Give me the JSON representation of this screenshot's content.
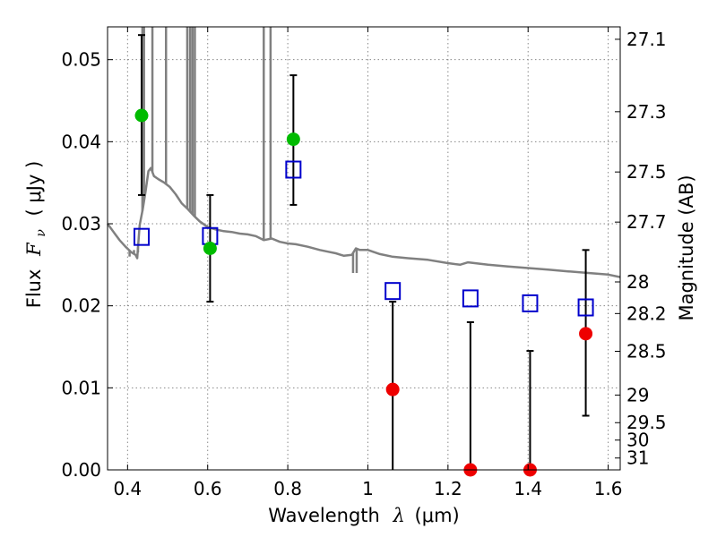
{
  "chart_data": {
    "type": "scatter",
    "title": "",
    "xlabel": "Wavelength",
    "xlabel_symbol": "λ",
    "xlabel_unit": "(μm)",
    "ylabel": "Flux",
    "ylabel_symbol": "F",
    "ylabel_subscript": "ν",
    "ylabel_unit": "( μJy )",
    "y2label": "Magnitude (AB)",
    "xlim": [
      0.35,
      1.63
    ],
    "ylim": [
      0.0,
      0.054
    ],
    "grid": true,
    "grid_style": "dotted",
    "legend": "none",
    "x_ticks": [
      {
        "value": 0.4,
        "label": "0.4"
      },
      {
        "value": 0.6,
        "label": "0.6"
      },
      {
        "value": 0.8,
        "label": "0.8"
      },
      {
        "value": 1.0,
        "label": "1"
      },
      {
        "value": 1.2,
        "label": "1.2"
      },
      {
        "value": 1.4,
        "label": "1.4"
      },
      {
        "value": 1.6,
        "label": "1.6"
      }
    ],
    "y_ticks": [
      {
        "value": 0.0,
        "label": "0.00"
      },
      {
        "value": 0.01,
        "label": "0.01"
      },
      {
        "value": 0.02,
        "label": "0.02"
      },
      {
        "value": 0.03,
        "label": "0.03"
      },
      {
        "value": 0.04,
        "label": "0.04"
      },
      {
        "value": 0.05,
        "label": "0.05"
      }
    ],
    "y2_ticks": [
      {
        "mag": 27.1,
        "label": "27.1"
      },
      {
        "mag": 27.3,
        "label": "27.3"
      },
      {
        "mag": 27.5,
        "label": "27.5"
      },
      {
        "mag": 27.7,
        "label": "27.7"
      },
      {
        "mag": 28.0,
        "label": "28"
      },
      {
        "mag": 28.2,
        "label": "28.2"
      },
      {
        "mag": 28.5,
        "label": "28.5"
      },
      {
        "mag": 29.0,
        "label": "29"
      },
      {
        "mag": 29.5,
        "label": "29.5"
      },
      {
        "mag": 30.0,
        "label": "30"
      },
      {
        "mag": 31.0,
        "label": "31"
      }
    ],
    "colors": {
      "spectrum": "#808080",
      "detected": "#00bb00",
      "upper_limit": "#ee0000",
      "model": "#0000cc",
      "errorbar": "#000000",
      "grid": "#888888"
    },
    "observed_detected": [
      {
        "x": 0.435,
        "y": 0.0432,
        "yerr_low": 0.0097,
        "yerr_high": 0.0098
      },
      {
        "x": 0.606,
        "y": 0.027,
        "yerr_low": 0.0065,
        "yerr_high": 0.0065
      },
      {
        "x": 0.814,
        "y": 0.0403,
        "yerr_low": 0.008,
        "yerr_high": 0.0078
      }
    ],
    "observed_faint": [
      {
        "x": 1.062,
        "y": 0.0098,
        "yerr_low": 0.0098,
        "yerr_high": 0.0107
      },
      {
        "x": 1.256,
        "y": 0.0,
        "yerr_low": 0.0,
        "yerr_high": 0.018
      },
      {
        "x": 1.405,
        "y": 0.0,
        "yerr_low": 0.0,
        "yerr_high": 0.0145
      },
      {
        "x": 1.544,
        "y": 0.0166,
        "yerr_low": 0.01,
        "yerr_high": 0.0102
      }
    ],
    "model_photometry": [
      {
        "x": 0.435,
        "y": 0.0284
      },
      {
        "x": 0.606,
        "y": 0.0285
      },
      {
        "x": 0.814,
        "y": 0.0366
      },
      {
        "x": 1.062,
        "y": 0.0218
      },
      {
        "x": 1.256,
        "y": 0.0209
      },
      {
        "x": 1.405,
        "y": 0.0203
      },
      {
        "x": 1.544,
        "y": 0.0198
      }
    ],
    "model_spectrum": [
      [
        0.35,
        0.03
      ],
      [
        0.365,
        0.029
      ],
      [
        0.38,
        0.028
      ],
      [
        0.395,
        0.0272
      ],
      [
        0.41,
        0.0265
      ],
      [
        0.42,
        0.0262
      ],
      [
        0.424,
        0.0258
      ],
      [
        0.43,
        0.0298
      ],
      [
        0.438,
        0.0318
      ],
      [
        0.445,
        0.034
      ],
      [
        0.452,
        0.0364
      ],
      [
        0.458,
        0.0368
      ],
      [
        0.466,
        0.0358
      ],
      [
        0.478,
        0.0354
      ],
      [
        0.492,
        0.035
      ],
      [
        0.505,
        0.0345
      ],
      [
        0.52,
        0.0336
      ],
      [
        0.535,
        0.0325
      ],
      [
        0.55,
        0.0318
      ],
      [
        0.565,
        0.031
      ],
      [
        0.58,
        0.0303
      ],
      [
        0.6,
        0.0296
      ],
      [
        0.62,
        0.0293
      ],
      [
        0.64,
        0.0291
      ],
      [
        0.66,
        0.029
      ],
      [
        0.68,
        0.0288
      ],
      [
        0.7,
        0.0287
      ],
      [
        0.72,
        0.0285
      ],
      [
        0.74,
        0.028
      ],
      [
        0.76,
        0.0282
      ],
      [
        0.78,
        0.0278
      ],
      [
        0.8,
        0.0276
      ],
      [
        0.82,
        0.0275
      ],
      [
        0.85,
        0.0272
      ],
      [
        0.88,
        0.0268
      ],
      [
        0.9,
        0.0266
      ],
      [
        0.92,
        0.0264
      ],
      [
        0.94,
        0.0261
      ],
      [
        0.96,
        0.0262
      ],
      [
        0.97,
        0.027
      ],
      [
        0.98,
        0.0268
      ],
      [
        1.0,
        0.0268
      ],
      [
        1.03,
        0.0263
      ],
      [
        1.06,
        0.026
      ],
      [
        1.1,
        0.0258
      ],
      [
        1.15,
        0.0256
      ],
      [
        1.2,
        0.0252
      ],
      [
        1.23,
        0.025
      ],
      [
        1.25,
        0.0253
      ],
      [
        1.3,
        0.025
      ],
      [
        1.35,
        0.0248
      ],
      [
        1.4,
        0.0246
      ],
      [
        1.45,
        0.0244
      ],
      [
        1.5,
        0.0242
      ],
      [
        1.55,
        0.024
      ],
      [
        1.6,
        0.0238
      ],
      [
        1.63,
        0.0235
      ]
    ],
    "spectrum_lines": [
      {
        "x": 0.405,
        "y": 0.026
      },
      {
        "x": 0.416,
        "y": 0.0268
      },
      {
        "x": 0.426,
        "y": 0.0265
      },
      {
        "x": 0.437,
        "y": 0.054
      },
      {
        "x": 0.441,
        "y": 0.054
      },
      {
        "x": 0.462,
        "y": 0.054
      },
      {
        "x": 0.496,
        "y": 0.054
      },
      {
        "x": 0.549,
        "y": 0.054
      },
      {
        "x": 0.556,
        "y": 0.054
      },
      {
        "x": 0.562,
        "y": 0.054
      },
      {
        "x": 0.568,
        "y": 0.054
      },
      {
        "x": 0.74,
        "y": 0.054
      },
      {
        "x": 0.757,
        "y": 0.054
      },
      {
        "x": 0.963,
        "y": 0.024
      },
      {
        "x": 0.972,
        "y": 0.024
      }
    ]
  }
}
